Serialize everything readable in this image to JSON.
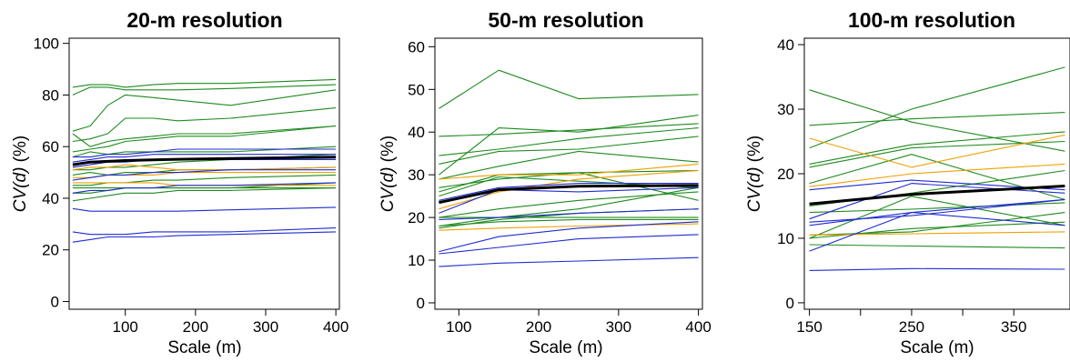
{
  "colors": {
    "green": "#1f8a1f",
    "blue": "#1f2bd0",
    "orange": "#f0a000",
    "black": "#000000"
  },
  "chart_data": [
    {
      "type": "line",
      "title": "20-m resolution",
      "xlabel": "Scale (m)",
      "ylabel_main": "CV",
      "ylabel_var": "(d)",
      "ylabel_unit": " (%)",
      "xlim": [
        20,
        405
      ],
      "ylim": [
        -3,
        102
      ],
      "x": [
        25,
        50,
        75,
        100,
        140,
        175,
        250,
        400
      ],
      "xticks": [
        100,
        200,
        300,
        400
      ],
      "yticks": [
        0,
        20,
        40,
        60,
        80,
        100
      ],
      "series": [
        {
          "color": "green",
          "values": [
            83,
            84,
            84,
            83,
            84,
            84.5,
            84.5,
            86
          ]
        },
        {
          "color": "green",
          "values": [
            80,
            83,
            83,
            82,
            82,
            82,
            82.5,
            84
          ]
        },
        {
          "color": "green",
          "values": [
            66,
            68,
            76,
            80,
            79,
            78,
            76,
            82
          ]
        },
        {
          "color": "green",
          "values": [
            62,
            63,
            65,
            71,
            71,
            70,
            71,
            75
          ]
        },
        {
          "color": "green",
          "values": [
            65,
            60,
            62,
            63,
            64,
            65,
            65,
            68
          ]
        },
        {
          "color": "green",
          "values": [
            58,
            59,
            60,
            62,
            63,
            64,
            64,
            68
          ]
        },
        {
          "color": "green",
          "values": [
            56,
            58,
            57,
            58,
            58,
            58,
            58,
            60
          ]
        },
        {
          "color": "green",
          "values": [
            51,
            51,
            52,
            52,
            53,
            54,
            55,
            57
          ]
        },
        {
          "color": "green",
          "values": [
            49,
            50,
            49,
            50,
            50,
            51,
            51,
            52
          ]
        },
        {
          "color": "green",
          "values": [
            45,
            45,
            46,
            46,
            47,
            47,
            48,
            49
          ]
        },
        {
          "color": "green",
          "values": [
            44,
            44,
            44,
            44,
            44,
            44,
            44,
            44
          ]
        },
        {
          "color": "green",
          "values": [
            42,
            42,
            43,
            44,
            44,
            44,
            44,
            46
          ]
        },
        {
          "color": "green",
          "values": [
            39,
            40,
            41,
            42,
            42,
            43,
            43,
            44
          ]
        },
        {
          "color": "orange",
          "values": [
            51,
            52,
            52,
            53,
            52,
            51,
            51,
            52
          ]
        },
        {
          "color": "orange",
          "values": [
            48,
            48,
            49,
            49,
            49,
            50,
            50,
            50
          ]
        },
        {
          "color": "orange",
          "values": [
            46,
            46,
            46,
            46,
            46,
            45,
            45,
            45
          ]
        },
        {
          "color": "blue",
          "values": [
            56,
            56,
            57,
            57,
            58,
            59,
            59,
            59
          ]
        },
        {
          "color": "blue",
          "values": [
            54,
            55,
            56,
            56,
            57,
            57,
            57,
            57
          ]
        },
        {
          "color": "blue",
          "values": [
            52,
            53,
            54,
            54,
            55,
            55,
            55,
            55
          ]
        },
        {
          "color": "blue",
          "values": [
            47,
            48,
            49,
            49,
            50,
            50,
            51,
            51
          ]
        },
        {
          "color": "blue",
          "values": [
            42,
            43,
            43,
            44,
            44,
            45,
            45,
            46
          ]
        },
        {
          "color": "blue",
          "values": [
            36,
            35,
            35,
            35,
            35,
            35,
            35.5,
            36.5
          ]
        },
        {
          "color": "blue",
          "values": [
            27,
            26,
            26,
            26,
            27,
            27,
            27,
            28.5
          ]
        },
        {
          "color": "blue",
          "values": [
            23,
            24,
            25,
            25,
            25,
            25.5,
            26,
            27
          ]
        },
        {
          "color": "black",
          "bold": true,
          "values": [
            53,
            54,
            54.3,
            54.6,
            54.9,
            55.1,
            55.4,
            55.9
          ]
        }
      ]
    },
    {
      "type": "line",
      "title": "50-m resolution",
      "xlabel": "Scale (m)",
      "ylabel_main": "CV",
      "ylabel_var": "(d)",
      "ylabel_unit": " (%)",
      "xlim": [
        70,
        405
      ],
      "ylim": [
        -1.5,
        62
      ],
      "x": [
        75,
        150,
        250,
        400
      ],
      "xticks": [
        100,
        200,
        300,
        400
      ],
      "yticks": [
        0,
        10,
        20,
        30,
        40,
        50,
        60
      ],
      "series": [
        {
          "color": "green",
          "values": [
            45.5,
            54.5,
            47.8,
            48.8
          ]
        },
        {
          "color": "green",
          "values": [
            39,
            39.5,
            40.5,
            42
          ]
        },
        {
          "color": "green",
          "values": [
            30,
            41,
            40,
            44
          ]
        },
        {
          "color": "green",
          "values": [
            34.5,
            36,
            38.5,
            41
          ]
        },
        {
          "color": "green",
          "values": [
            32.5,
            35.5,
            36,
            39
          ]
        },
        {
          "color": "green",
          "values": [
            29,
            32,
            35.5,
            33
          ]
        },
        {
          "color": "green",
          "values": [
            26,
            30,
            30.5,
            31
          ]
        },
        {
          "color": "green",
          "values": [
            27,
            29,
            30.5,
            24
          ]
        },
        {
          "color": "green",
          "values": [
            25,
            29.5,
            28.5,
            27
          ]
        },
        {
          "color": "green",
          "values": [
            20,
            22,
            24,
            26
          ]
        },
        {
          "color": "green",
          "values": [
            18,
            20,
            22,
            27
          ]
        },
        {
          "color": "green",
          "values": [
            17.5,
            19.5,
            21,
            22
          ]
        },
        {
          "color": "green",
          "values": [
            18,
            19,
            19.5,
            19.5
          ]
        },
        {
          "color": "green",
          "values": [
            20,
            20,
            20,
            20
          ]
        },
        {
          "color": "orange",
          "values": [
            29,
            30,
            30,
            32.5
          ]
        },
        {
          "color": "orange",
          "values": [
            22,
            26,
            29,
            31
          ]
        },
        {
          "color": "orange",
          "values": [
            17,
            17.5,
            18,
            18.5
          ]
        },
        {
          "color": "blue",
          "values": [
            24,
            27,
            28,
            28
          ]
        },
        {
          "color": "blue",
          "values": [
            21,
            26.5,
            26,
            27
          ]
        },
        {
          "color": "blue",
          "values": [
            19.5,
            20,
            21,
            22
          ]
        },
        {
          "color": "blue",
          "values": [
            12,
            15.5,
            17.5,
            19
          ]
        },
        {
          "color": "blue",
          "values": [
            11.5,
            13,
            15,
            16
          ]
        },
        {
          "color": "blue",
          "values": [
            8.5,
            9.3,
            9.8,
            10.6
          ]
        },
        {
          "color": "black",
          "bold": true,
          "values": [
            23.5,
            26.5,
            27.3,
            27.5
          ]
        }
      ]
    },
    {
      "type": "line",
      "title": "100-m resolution",
      "xlabel": "Scale (m)",
      "ylabel_main": "CV",
      "ylabel_var": "(d)",
      "ylabel_unit": " (%)",
      "xlim": [
        145,
        405
      ],
      "ylim": [
        -1,
        41
      ],
      "x": [
        150,
        250,
        400
      ],
      "xticks": [
        150,
        250,
        350
      ],
      "xticks_unlabeled": [
        200,
        300
      ],
      "yticks": [
        0,
        10,
        20,
        30,
        40
      ],
      "series": [
        {
          "color": "green",
          "values": [
            33,
            28,
            23.5
          ]
        },
        {
          "color": "green",
          "values": [
            24,
            30,
            36.5
          ]
        },
        {
          "color": "green",
          "values": [
            27.5,
            28.5,
            29.5
          ]
        },
        {
          "color": "green",
          "values": [
            21.5,
            24.5,
            26.5
          ]
        },
        {
          "color": "green",
          "values": [
            21,
            24,
            25
          ]
        },
        {
          "color": "green",
          "values": [
            18.5,
            23,
            16
          ]
        },
        {
          "color": "green",
          "values": [
            15,
            17,
            20.5
          ]
        },
        {
          "color": "green",
          "values": [
            14,
            14.5,
            15.5
          ]
        },
        {
          "color": "green",
          "values": [
            10,
            16.5,
            12
          ]
        },
        {
          "color": "green",
          "values": [
            10.5,
            11,
            14
          ]
        },
        {
          "color": "green",
          "values": [
            10,
            11.5,
            12.5
          ]
        },
        {
          "color": "green",
          "values": [
            9,
            8.8,
            8.5
          ]
        },
        {
          "color": "orange",
          "values": [
            25.5,
            21,
            26
          ]
        },
        {
          "color": "orange",
          "values": [
            18,
            20,
            21.5
          ]
        },
        {
          "color": "orange",
          "values": [
            10.5,
            10.7,
            11
          ]
        },
        {
          "color": "blue",
          "values": [
            17.5,
            19,
            17.5
          ]
        },
        {
          "color": "blue",
          "values": [
            13,
            18.5,
            17
          ]
        },
        {
          "color": "blue",
          "values": [
            12.5,
            13.5,
            16
          ]
        },
        {
          "color": "blue",
          "values": [
            12,
            14,
            12
          ]
        },
        {
          "color": "blue",
          "values": [
            8,
            14,
            16
          ]
        },
        {
          "color": "blue",
          "values": [
            5,
            5.3,
            5.2
          ]
        },
        {
          "color": "black",
          "bold": true,
          "values": [
            15.3,
            16.8,
            18.1
          ]
        }
      ]
    }
  ]
}
